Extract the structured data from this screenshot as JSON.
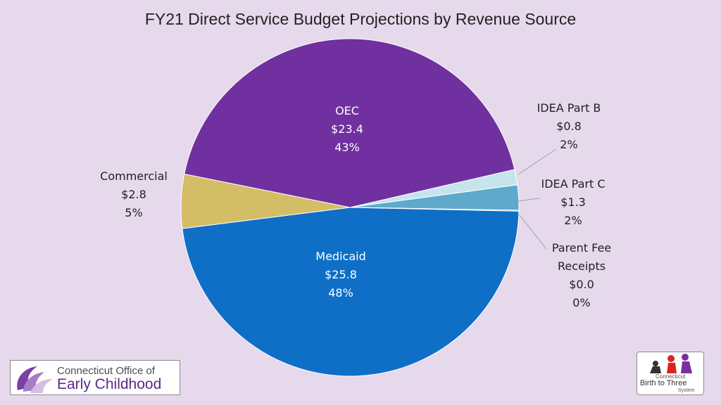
{
  "chart_data": {
    "type": "pie",
    "title": "FY21 Direct Service Budget Projections by Revenue Source",
    "slices": [
      {
        "name": "IDEA Part B",
        "value": 0.8,
        "value_label": "$0.8",
        "percent_label": "2%",
        "color": "#c6e4ec"
      },
      {
        "name": "IDEA Part C",
        "value": 1.3,
        "value_label": "$1.3",
        "percent_label": "2%",
        "color": "#5ea9cc"
      },
      {
        "name": "Parent Fee Receipts",
        "value": 0.05,
        "value_label": "$0.0",
        "percent_label": "0%",
        "color": "#4a86b8"
      },
      {
        "name": "Medicaid",
        "value": 25.8,
        "value_label": "$25.8",
        "percent_label": "48%",
        "color": "#0f6fc6"
      },
      {
        "name": "Commercial",
        "value": 2.8,
        "value_label": "$2.8",
        "percent_label": "5%",
        "color": "#d4bd67"
      },
      {
        "name": "OEC",
        "value": 23.4,
        "value_label": "$23.4",
        "percent_label": "43%",
        "color": "#7030a0"
      }
    ],
    "label_lines": {
      "Parent Fee Receipts": [
        "Parent Fee",
        "Receipts"
      ]
    }
  },
  "logos": {
    "oec": {
      "line1": "Connecticut Office of",
      "line2": "Early Childhood"
    },
    "birth_to_three": {
      "line1": "Connecticut",
      "line2": "Birth to Three",
      "line3": "System"
    }
  }
}
